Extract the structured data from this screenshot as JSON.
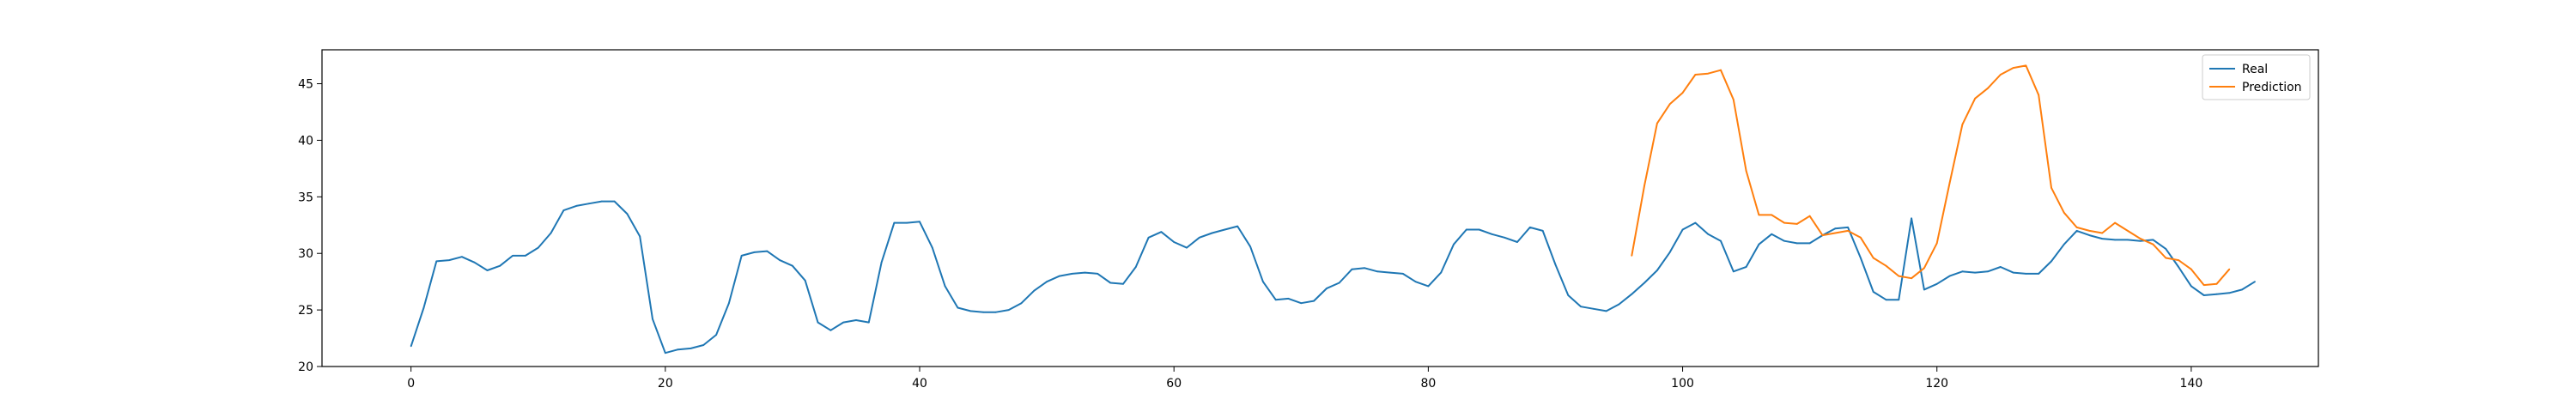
{
  "chart_data": {
    "type": "line",
    "title": "",
    "xlabel": "",
    "ylabel": "",
    "xlim": [
      -7,
      150
    ],
    "ylim": [
      20,
      48
    ],
    "xticks": [
      0,
      20,
      40,
      60,
      80,
      100,
      120,
      140
    ],
    "yticks": [
      20,
      25,
      30,
      35,
      40,
      45
    ],
    "xtick_labels": [
      "0",
      "20",
      "40",
      "60",
      "80",
      "100",
      "120",
      "140"
    ],
    "ytick_labels": [
      "20",
      "25",
      "30",
      "35",
      "40",
      "45"
    ],
    "grid": false,
    "legend": {
      "position": "top-right",
      "entries": [
        "Real",
        "Prediction"
      ]
    },
    "series": [
      {
        "name": "Real",
        "color": "#1f77b4",
        "x_start": 0,
        "values": [
          21.8,
          25.2,
          29.3,
          29.4,
          29.7,
          29.2,
          28.5,
          28.9,
          29.8,
          29.8,
          30.5,
          31.8,
          33.8,
          34.2,
          34.4,
          34.6,
          34.6,
          33.5,
          31.5,
          24.2,
          21.2,
          21.5,
          21.6,
          21.9,
          22.8,
          25.6,
          29.8,
          30.1,
          30.2,
          29.4,
          28.9,
          27.6,
          23.9,
          23.2,
          23.9,
          24.1,
          23.9,
          29.2,
          32.7,
          32.7,
          32.8,
          30.5,
          27.1,
          25.2,
          24.9,
          24.8,
          24.8,
          25.0,
          25.6,
          26.7,
          27.5,
          28.0,
          28.2,
          28.3,
          28.2,
          27.4,
          27.3,
          28.8,
          31.4,
          31.9,
          31.0,
          30.5,
          31.4,
          31.8,
          32.1,
          32.4,
          30.6,
          27.5,
          25.9,
          26.0,
          25.6,
          25.8,
          26.9,
          27.4,
          28.6,
          28.7,
          28.4,
          28.3,
          28.2,
          27.5,
          27.1,
          28.3,
          30.8,
          32.1,
          32.1,
          31.7,
          31.4,
          31.0,
          32.3,
          32.0,
          29.0,
          26.3,
          25.3,
          25.1,
          24.9,
          25.5,
          26.4,
          27.4,
          28.5,
          30.1,
          32.1,
          32.7,
          31.7,
          31.1,
          28.4,
          28.8,
          30.8,
          31.7,
          31.1,
          30.9,
          30.9,
          31.6,
          32.2,
          32.3,
          29.6,
          26.6,
          25.9,
          25.9,
          33.1,
          26.8,
          27.3,
          28.0,
          28.4,
          28.3,
          28.4,
          28.8,
          28.3,
          28.2,
          28.2,
          29.3,
          30.8,
          32.0,
          31.6,
          31.3,
          31.2,
          31.2,
          31.1,
          31.2,
          30.4,
          28.8,
          27.1,
          26.3,
          26.4,
          26.5,
          26.8,
          27.5
        ]
      },
      {
        "name": "Prediction",
        "color": "#ff7f0e",
        "x_start": 96,
        "values": [
          29.8,
          36.0,
          41.5,
          43.2,
          44.2,
          45.8,
          45.9,
          46.2,
          43.6,
          37.3,
          33.4,
          33.4,
          32.7,
          32.6,
          33.3,
          31.6,
          31.8,
          32.0,
          31.4,
          29.6,
          28.9,
          28.0,
          27.8,
          28.7,
          30.9,
          36.2,
          41.4,
          43.7,
          44.6,
          45.8,
          46.4,
          46.6,
          44.0,
          35.8,
          33.6,
          32.3,
          32.0,
          31.8,
          32.7,
          32.0,
          31.3,
          30.8,
          29.6,
          29.4,
          28.6,
          27.2,
          27.3,
          28.6
        ]
      }
    ]
  }
}
